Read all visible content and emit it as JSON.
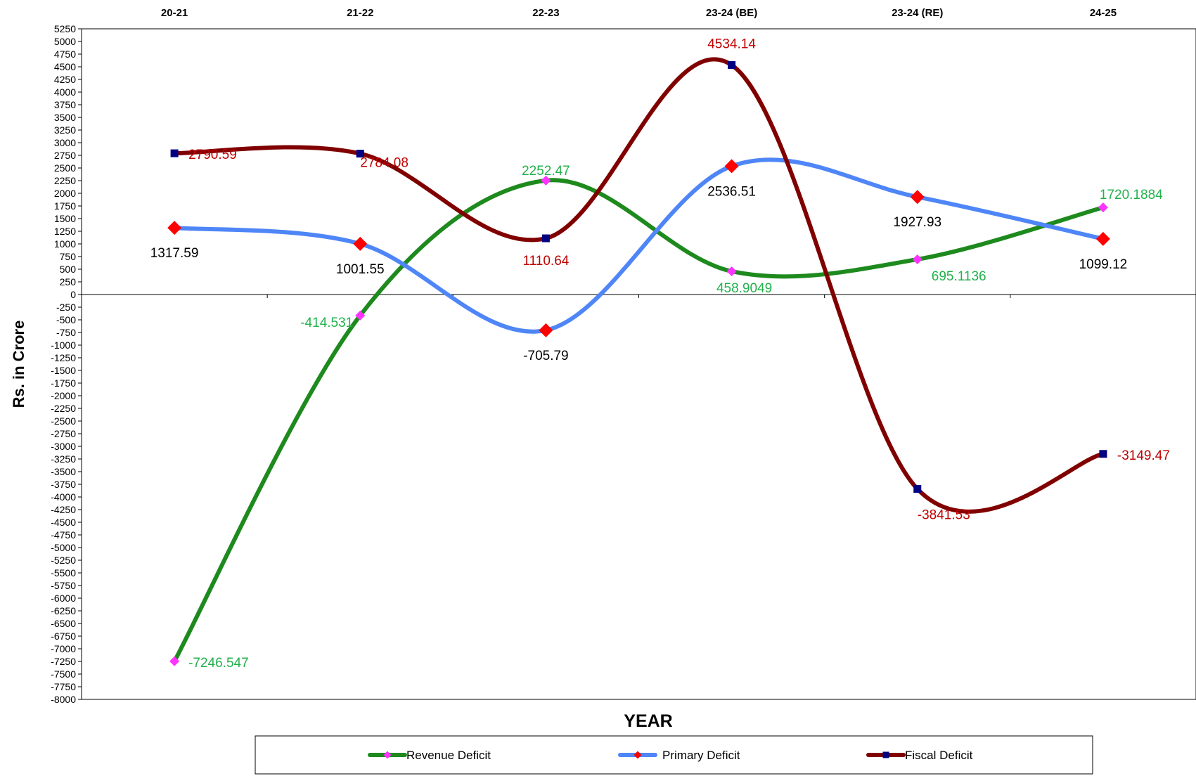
{
  "chart_data": {
    "type": "line",
    "categories": [
      "20-21",
      "21-22",
      "22-23",
      "23-24 (BE)",
      "23-24 (RE)",
      "24-25"
    ],
    "xlabel": "YEAR",
    "ylabel": "Rs. in Crore",
    "ylim": [
      -8000,
      5250
    ],
    "ytick_step": 250,
    "grid": false,
    "legend_position": "bottom",
    "smooth": true,
    "series": [
      {
        "name": "Revenue Deficit",
        "values": [
          -7246.547,
          -414.531,
          2252.47,
          458.9049,
          695.1136,
          1720.1884
        ],
        "labels": [
          "-7246.547",
          "-414.531",
          "2252.47",
          "458.9049",
          "695.1136",
          "1720.1884"
        ],
        "line_color": "#1e8a1e",
        "marker_color": "#ff33ff",
        "marker": "diamond",
        "label_color": "#22b14c"
      },
      {
        "name": "Primary Deficit",
        "values": [
          1317.59,
          1001.55,
          -705.79,
          2536.51,
          1927.93,
          1099.12
        ],
        "labels": [
          "1317.59",
          "1001.55",
          "-705.79",
          "2536.51",
          "1927.93",
          "1099.12"
        ],
        "line_color": "#4f86f7",
        "marker_color": "#ff0000",
        "marker": "diamond",
        "label_color": "#000000"
      },
      {
        "name": "Fiscal Deficit",
        "values": [
          2790.59,
          2784.08,
          1110.64,
          4534.14,
          -3841.53,
          -3149.47
        ],
        "labels": [
          "2790.59",
          "2784.08",
          "1110.64",
          "4534.14",
          "-3841.53",
          "-3149.47"
        ],
        "line_color": "#800000",
        "marker_color": "#000080",
        "marker": "square",
        "label_color": "#c00000"
      }
    ]
  }
}
